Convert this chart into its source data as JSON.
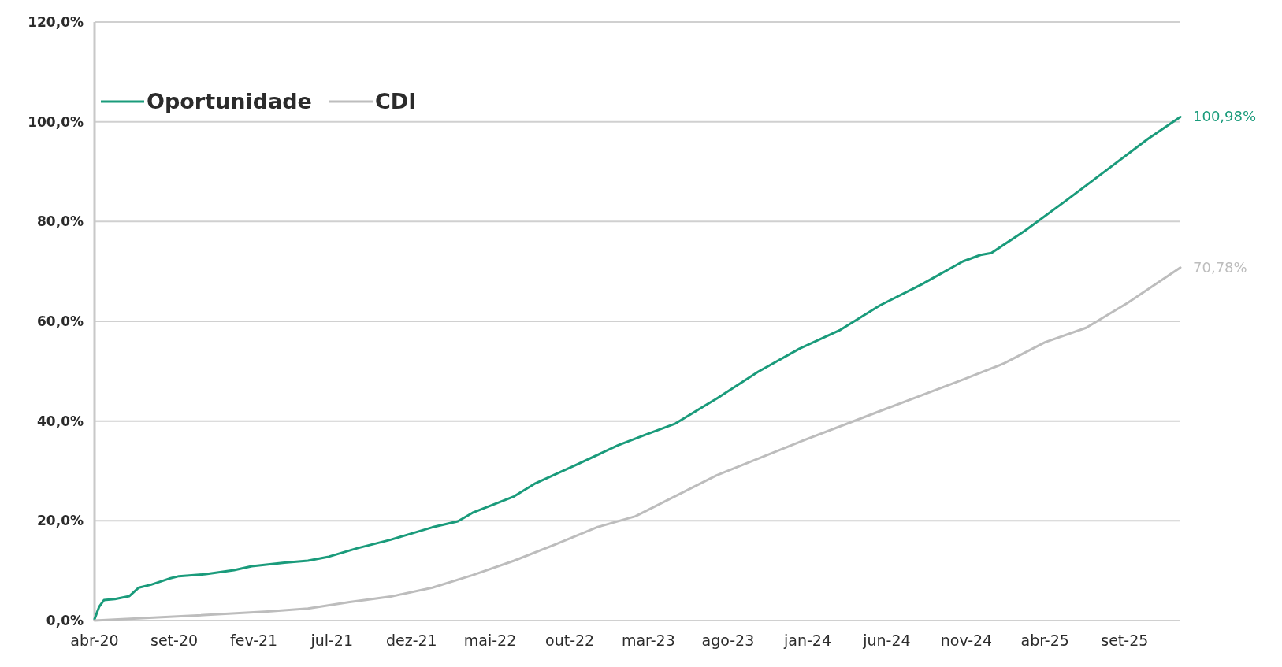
{
  "chart_data": {
    "type": "line",
    "xlim": [
      "2020-04-01",
      "2025-12-17"
    ],
    "xticks": [
      {
        "value": "2020-04-01",
        "label": "abr-20"
      },
      {
        "value": "2020-09-01",
        "label": "set-20"
      },
      {
        "value": "2021-02-01",
        "label": "fev-21"
      },
      {
        "value": "2021-07-01",
        "label": "jul-21"
      },
      {
        "value": "2021-12-01",
        "label": "dez-21"
      },
      {
        "value": "2022-05-01",
        "label": "mai-22"
      },
      {
        "value": "2022-10-01",
        "label": "out-22"
      },
      {
        "value": "2023-03-01",
        "label": "mar-23"
      },
      {
        "value": "2023-08-01",
        "label": "ago-23"
      },
      {
        "value": "2024-01-01",
        "label": "jan-24"
      },
      {
        "value": "2024-06-01",
        "label": "jun-24"
      },
      {
        "value": "2024-11-01",
        "label": "nov-24"
      },
      {
        "value": "2025-04-01",
        "label": "abr-25"
      },
      {
        "value": "2025-09-01",
        "label": "set-25"
      }
    ],
    "ylim": [
      0,
      120
    ],
    "yticks": [
      {
        "value": 0,
        "label": "0,0%"
      },
      {
        "value": 20,
        "label": "20,0%"
      },
      {
        "value": 40,
        "label": "40,0%"
      },
      {
        "value": 60,
        "label": "60,0%"
      },
      {
        "value": 80,
        "label": "80,0%"
      },
      {
        "value": 100,
        "label": "100,0%"
      },
      {
        "value": 120,
        "label": "120,0%"
      }
    ],
    "grid": "y",
    "legend": "top left",
    "marker": "none",
    "line_style": "solid",
    "series": [
      {
        "name": "Oportunidade",
        "color": "#1a9b7b",
        "x": [
          "2020-04-01",
          "2020-04-10",
          "2020-04-19",
          "2020-05-10",
          "2020-06-07",
          "2020-06-25",
          "2020-07-19",
          "2020-08-22",
          "2020-09-10",
          "2020-11-01",
          "2020-12-25",
          "2021-01-28",
          "2021-04-01",
          "2021-05-16",
          "2021-06-25",
          "2021-08-19",
          "2021-10-22",
          "2022-01-10",
          "2022-02-28",
          "2022-03-28",
          "2022-06-16",
          "2022-07-25",
          "2022-10-13",
          "2023-01-01",
          "2023-02-22",
          "2023-04-22",
          "2023-07-10",
          "2023-09-28",
          "2023-12-16",
          "2024-03-04",
          "2024-05-19",
          "2024-08-07",
          "2024-10-25",
          "2024-11-28",
          "2024-12-19",
          "2025-02-22",
          "2025-05-10",
          "2025-07-28",
          "2025-10-16",
          "2025-12-17"
        ],
        "values": [
          0.3,
          2.8,
          4.1,
          4.3,
          4.9,
          6.6,
          7.2,
          8.4,
          8.9,
          9.3,
          10.1,
          10.9,
          11.6,
          12.0,
          12.8,
          14.5,
          16.2,
          18.7,
          19.9,
          21.6,
          24.9,
          27.4,
          31.2,
          35.1,
          37.2,
          39.5,
          44.5,
          49.9,
          54.5,
          58.3,
          63.2,
          67.4,
          72.0,
          73.3,
          73.7,
          78.2,
          84.1,
          90.3,
          96.6,
          100.98
        ],
        "value_labels": [
          null,
          null,
          null,
          null,
          null,
          null,
          null,
          null,
          null,
          null,
          null,
          null,
          null,
          null,
          null,
          null,
          null,
          null,
          null,
          null,
          null,
          null,
          null,
          null,
          null,
          null,
          null,
          null,
          null,
          null,
          null,
          null,
          null,
          null,
          null,
          null,
          null,
          null,
          null,
          "100,98%"
        ]
      },
      {
        "name": "CDI",
        "color": "#bdbdbd",
        "x": [
          "2020-04-01",
          "2020-09-22",
          "2021-02-28",
          "2021-05-16",
          "2021-08-04",
          "2021-10-22",
          "2022-01-10",
          "2022-03-28",
          "2022-06-16",
          "2022-09-04",
          "2022-11-22",
          "2023-02-04",
          "2023-07-10",
          "2023-12-16",
          "2024-05-19",
          "2024-10-25",
          "2025-01-13",
          "2025-04-01",
          "2025-06-19",
          "2025-09-07",
          "2025-12-17"
        ],
        "values": [
          0,
          0.9,
          1.8,
          2.4,
          3.7,
          4.8,
          6.6,
          9.1,
          12.0,
          15.3,
          18.7,
          20.9,
          29.1,
          35.8,
          42.0,
          48.3,
          51.6,
          55.8,
          58.7,
          63.7,
          70.78
        ],
        "value_labels": [
          null,
          null,
          null,
          null,
          null,
          null,
          null,
          null,
          null,
          null,
          null,
          null,
          null,
          null,
          null,
          null,
          null,
          null,
          null,
          null,
          "70,78%"
        ]
      }
    ]
  }
}
